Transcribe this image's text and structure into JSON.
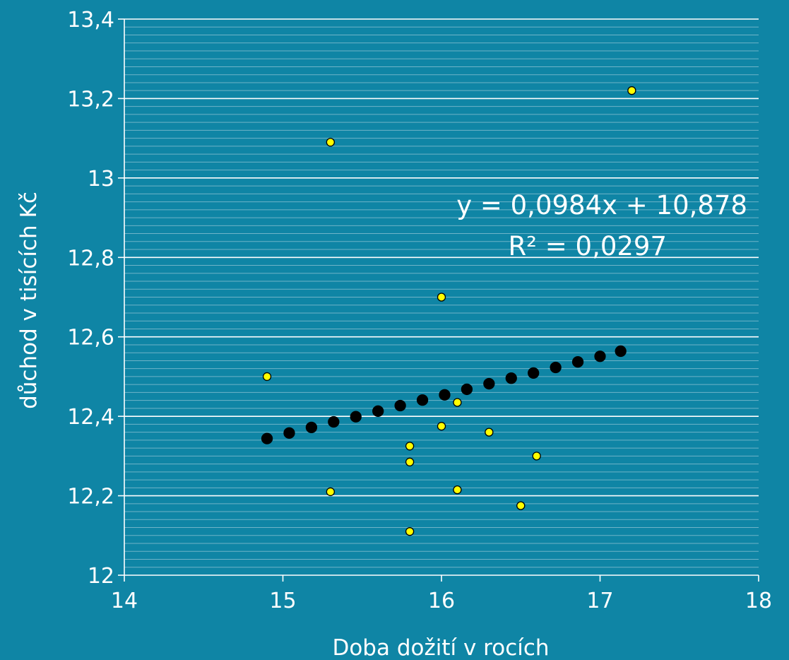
{
  "chart_data": {
    "type": "scatter",
    "title": "",
    "xlabel": "Doba dožití v rocích",
    "ylabel": "důchod v tisících Kč",
    "xlim": [
      14,
      18
    ],
    "ylim": [
      12,
      13.4
    ],
    "x_ticks": [
      "14",
      "15",
      "16",
      "17",
      "18"
    ],
    "y_ticks": [
      "12",
      "12,2",
      "12,4",
      "12,6",
      "12,8",
      "13",
      "13,2",
      "13,4"
    ],
    "grid": true,
    "trendline": {
      "equation": "y = 0,0984x + 10,878",
      "r_squared": "R² = 0,0297",
      "slope": 0.0984,
      "intercept": 10.878
    },
    "series": [
      {
        "color": "#ffff00",
        "points": [
          {
            "x": 14.9,
            "y": 12.5
          },
          {
            "x": 15.3,
            "y": 13.09
          },
          {
            "x": 15.3,
            "y": 12.21
          },
          {
            "x": 15.8,
            "y": 12.325
          },
          {
            "x": 15.8,
            "y": 12.285
          },
          {
            "x": 15.8,
            "y": 12.11
          },
          {
            "x": 16.0,
            "y": 12.7
          },
          {
            "x": 16.0,
            "y": 12.375
          },
          {
            "x": 16.1,
            "y": 12.435
          },
          {
            "x": 16.1,
            "y": 12.215
          },
          {
            "x": 16.3,
            "y": 12.36
          },
          {
            "x": 16.5,
            "y": 12.175
          },
          {
            "x": 16.6,
            "y": 12.3
          },
          {
            "x": 17.2,
            "y": 13.22
          }
        ]
      },
      {
        "color": "#000000",
        "points": [
          {
            "x": 14.9,
            "y": 12.344
          },
          {
            "x": 15.04,
            "y": 12.358
          },
          {
            "x": 15.18,
            "y": 12.372
          },
          {
            "x": 15.32,
            "y": 12.386
          },
          {
            "x": 15.46,
            "y": 12.399
          },
          {
            "x": 15.6,
            "y": 12.413
          },
          {
            "x": 15.74,
            "y": 12.427
          },
          {
            "x": 15.88,
            "y": 12.441
          },
          {
            "x": 16.02,
            "y": 12.454
          },
          {
            "x": 16.16,
            "y": 12.468
          },
          {
            "x": 16.3,
            "y": 12.482
          },
          {
            "x": 16.44,
            "y": 12.496
          },
          {
            "x": 16.58,
            "y": 12.509
          },
          {
            "x": 16.72,
            "y": 12.523
          },
          {
            "x": 16.86,
            "y": 12.537
          },
          {
            "x": 17.0,
            "y": 12.551
          },
          {
            "x": 17.13,
            "y": 12.564
          }
        ]
      }
    ]
  }
}
